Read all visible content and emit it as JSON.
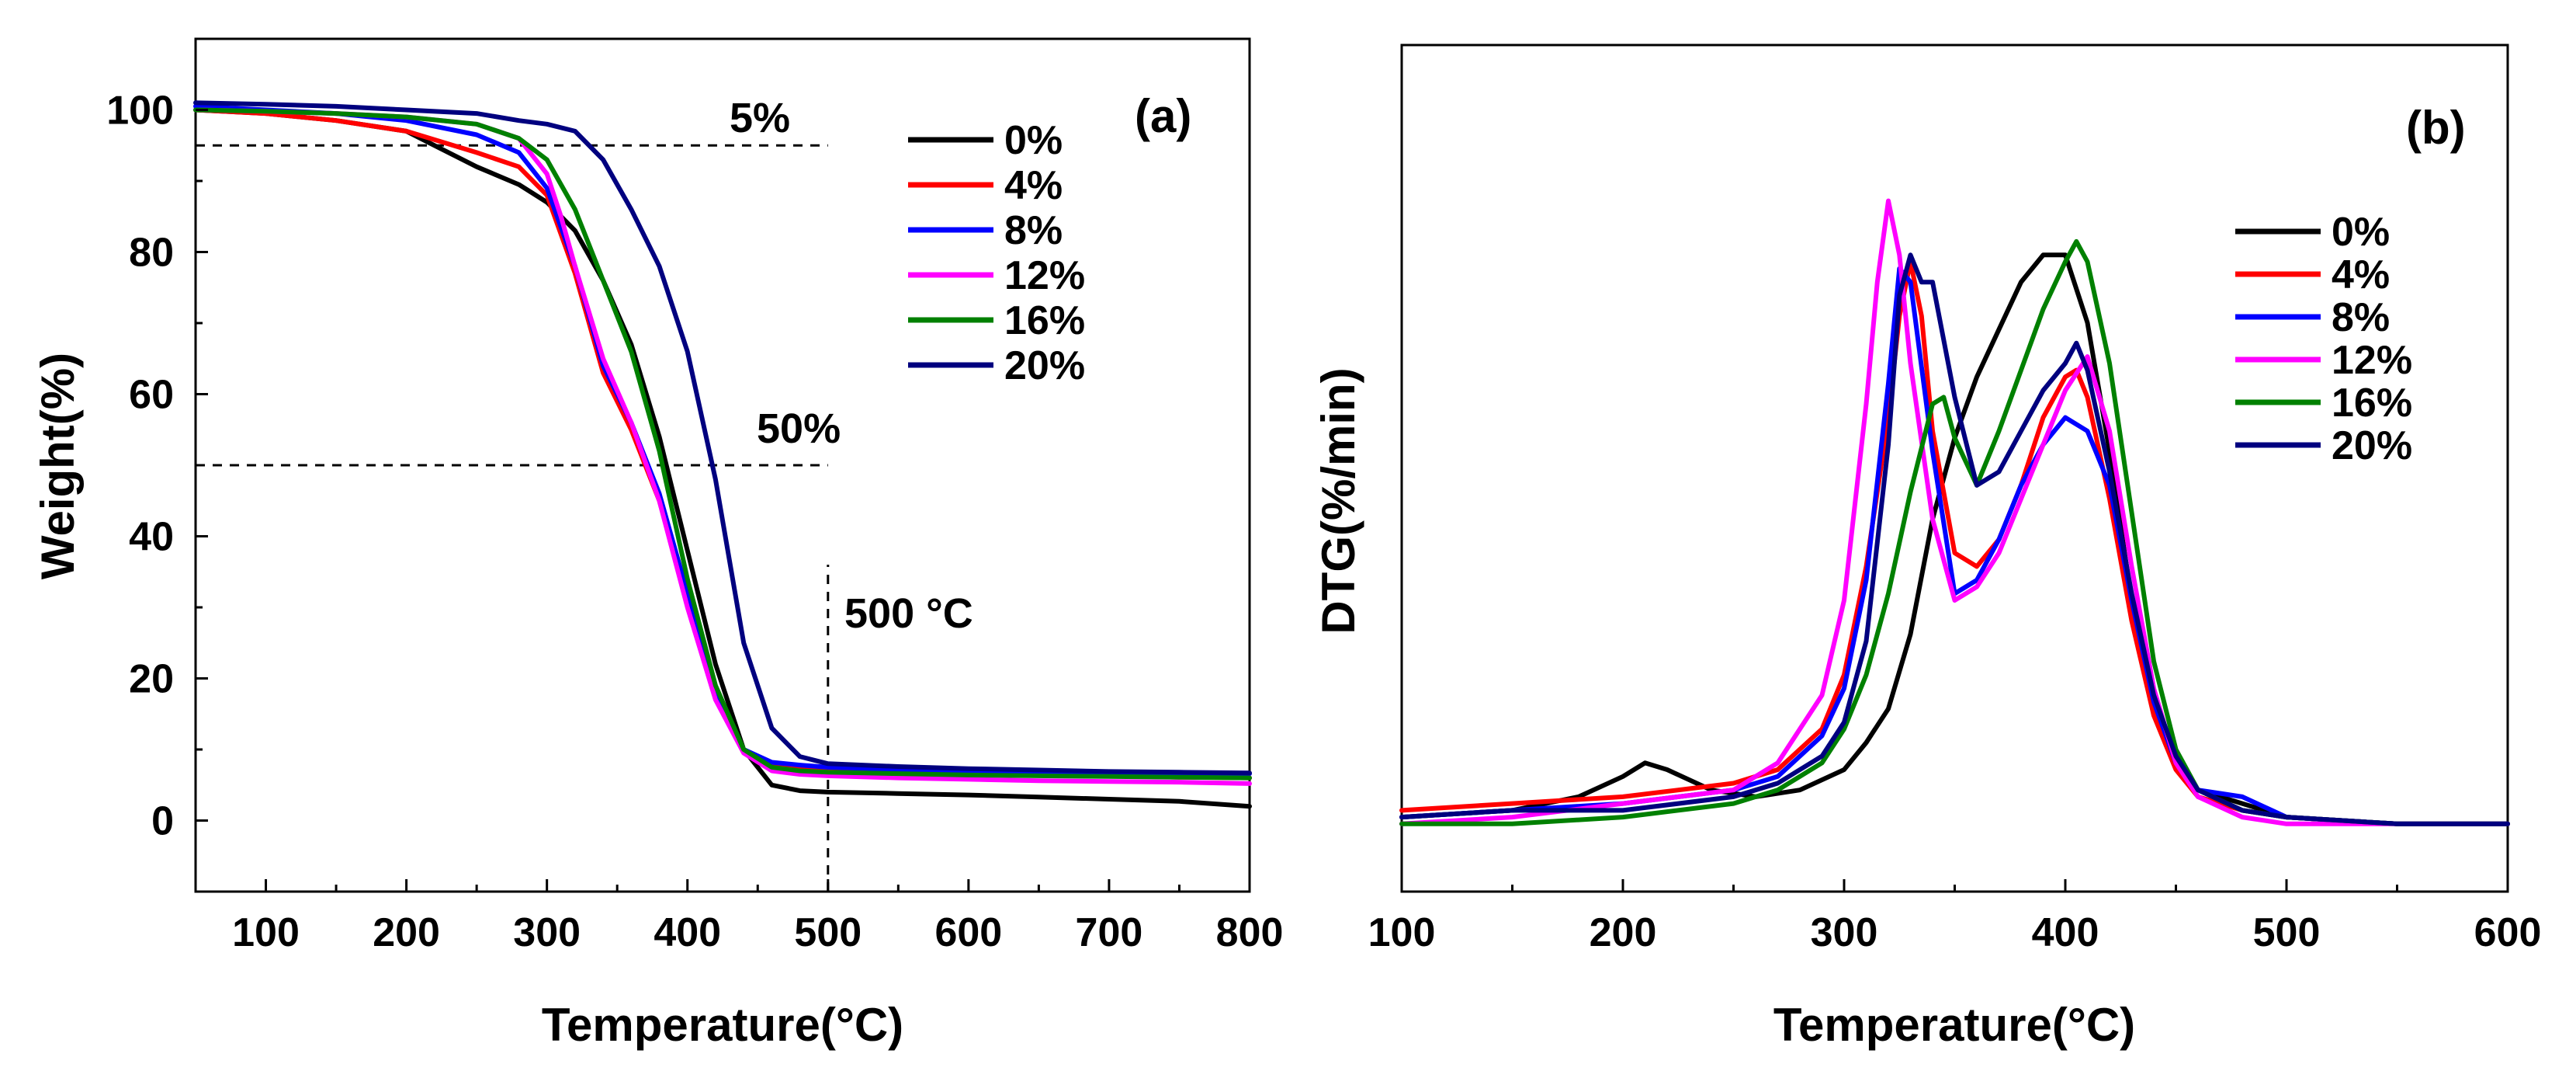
{
  "colors": {
    "0%": "#000000",
    "4%": "#ff0000",
    "8%": "#0000ff",
    "12%": "#ff00ff",
    "16%": "#008000",
    "20%": "#00007f"
  },
  "chart_data": [
    {
      "id": "a",
      "type": "line",
      "panel_label": "(a)",
      "title": "",
      "xlabel": "Temperature(°C)",
      "ylabel": "Weight(%)",
      "xlim": [
        50,
        800
      ],
      "ylim": [
        -10,
        110
      ],
      "xticks": [
        100,
        200,
        300,
        400,
        500,
        600,
        700,
        800
      ],
      "yticks": [
        0,
        20,
        40,
        60,
        80,
        100
      ],
      "legend_position": "top-right",
      "reference_lines": [
        {
          "orientation": "horizontal",
          "y": 95,
          "x_range": [
            50,
            500
          ],
          "label": "5%"
        },
        {
          "orientation": "horizontal",
          "y": 50,
          "x_range": [
            50,
            500
          ],
          "label": "50%"
        },
        {
          "orientation": "vertical",
          "x": 500,
          "y_range": [
            -10,
            36
          ],
          "label": "500 °C"
        }
      ],
      "series": [
        {
          "name": "0%",
          "x": [
            50,
            100,
            150,
            200,
            220,
            250,
            280,
            300,
            320,
            340,
            360,
            380,
            400,
            420,
            440,
            460,
            480,
            500,
            550,
            600,
            650,
            700,
            750,
            800
          ],
          "values": [
            100,
            99.5,
            98.5,
            97,
            95,
            92,
            89.5,
            87,
            83,
            76,
            67,
            54,
            38,
            22,
            10,
            5,
            4.2,
            4,
            3.8,
            3.6,
            3.3,
            3,
            2.7,
            2
          ]
        },
        {
          "name": "4%",
          "x": [
            50,
            100,
            150,
            200,
            250,
            280,
            300,
            320,
            340,
            360,
            380,
            400,
            420,
            440,
            460,
            480,
            500,
            550,
            600,
            650,
            700,
            750,
            800
          ],
          "values": [
            100,
            99.5,
            98.5,
            97,
            94,
            92,
            88,
            77,
            63,
            55,
            45,
            31,
            18,
            10,
            8,
            7.5,
            7.2,
            6.9,
            6.7,
            6.5,
            6.3,
            6.1,
            6
          ]
        },
        {
          "name": "8%",
          "x": [
            50,
            100,
            150,
            200,
            250,
            280,
            300,
            320,
            340,
            360,
            380,
            400,
            420,
            440,
            460,
            480,
            500,
            550,
            600,
            650,
            700,
            750,
            800
          ],
          "values": [
            100.5,
            100,
            99.5,
            98.5,
            96.5,
            94,
            89,
            78,
            64,
            56,
            46,
            32,
            18,
            10,
            8.2,
            7.8,
            7.5,
            7.2,
            7,
            6.9,
            6.8,
            6.7,
            6.6
          ]
        },
        {
          "name": "12%",
          "x": [
            50,
            100,
            150,
            200,
            250,
            280,
            300,
            310,
            320,
            340,
            360,
            380,
            400,
            420,
            440,
            460,
            480,
            500,
            550,
            600,
            650,
            700,
            750,
            800
          ],
          "values": [
            100,
            99.8,
            99.5,
            99,
            98,
            96,
            91,
            85,
            78,
            65,
            56,
            45,
            30,
            17,
            9.5,
            7,
            6.5,
            6.3,
            6,
            5.8,
            5.6,
            5.5,
            5.4,
            5.2
          ]
        },
        {
          "name": "16%",
          "x": [
            50,
            100,
            150,
            200,
            250,
            280,
            300,
            320,
            340,
            360,
            380,
            400,
            420,
            440,
            460,
            480,
            500,
            550,
            600,
            650,
            700,
            750,
            800
          ],
          "values": [
            100,
            99.8,
            99.5,
            99,
            98,
            96,
            93,
            86,
            76,
            66,
            52,
            34,
            19,
            10,
            7.5,
            7,
            6.8,
            6.6,
            6.4,
            6.3,
            6.2,
            6.1,
            6
          ]
        },
        {
          "name": "20%",
          "x": [
            50,
            100,
            150,
            200,
            250,
            280,
            300,
            320,
            340,
            360,
            380,
            400,
            420,
            440,
            460,
            480,
            500,
            550,
            600,
            650,
            700,
            750,
            800
          ],
          "values": [
            101,
            100.8,
            100.5,
            100,
            99.5,
            98.5,
            98,
            97,
            93,
            86,
            78,
            66,
            48,
            25,
            13,
            9,
            8,
            7.6,
            7.3,
            7.1,
            6.9,
            6.8,
            6.7
          ]
        }
      ]
    },
    {
      "id": "b",
      "type": "line",
      "panel_label": "(b)",
      "title": "",
      "xlabel": "Temperature(°C)",
      "ylabel": "DTG(%/min)",
      "xlim": [
        100,
        600
      ],
      "ylim": [
        -0.1,
        1.15
      ],
      "xticks": [
        100,
        200,
        300,
        400,
        500,
        600
      ],
      "yticks": [],
      "legend_position": "right",
      "series": [
        {
          "name": "0%",
          "x": [
            100,
            150,
            180,
            200,
            210,
            220,
            240,
            260,
            280,
            300,
            310,
            320,
            330,
            340,
            350,
            360,
            370,
            380,
            390,
            400,
            410,
            420,
            430,
            440,
            450,
            460,
            480,
            500,
            550,
            600
          ],
          "values": [
            0.01,
            0.02,
            0.04,
            0.07,
            0.09,
            0.08,
            0.05,
            0.04,
            0.05,
            0.08,
            0.12,
            0.17,
            0.28,
            0.45,
            0.57,
            0.66,
            0.73,
            0.8,
            0.84,
            0.84,
            0.74,
            0.55,
            0.33,
            0.18,
            0.09,
            0.05,
            0.03,
            0.01,
            0,
            0
          ]
        },
        {
          "name": "4%",
          "x": [
            100,
            150,
            200,
            250,
            270,
            290,
            300,
            310,
            320,
            325,
            330,
            335,
            340,
            350,
            360,
            370,
            380,
            390,
            400,
            405,
            410,
            420,
            430,
            440,
            450,
            460,
            480,
            500,
            550,
            600
          ],
          "values": [
            0.02,
            0.03,
            0.04,
            0.06,
            0.08,
            0.14,
            0.22,
            0.38,
            0.6,
            0.75,
            0.83,
            0.75,
            0.58,
            0.4,
            0.38,
            0.42,
            0.5,
            0.6,
            0.66,
            0.67,
            0.63,
            0.48,
            0.3,
            0.16,
            0.08,
            0.04,
            0.02,
            0.01,
            0,
            0
          ]
        },
        {
          "name": "8%",
          "x": [
            100,
            150,
            200,
            250,
            270,
            290,
            300,
            310,
            320,
            325,
            330,
            340,
            350,
            360,
            370,
            380,
            390,
            400,
            410,
            420,
            430,
            440,
            450,
            460,
            480,
            500,
            550,
            600
          ],
          "values": [
            0.01,
            0.02,
            0.03,
            0.05,
            0.07,
            0.13,
            0.2,
            0.36,
            0.65,
            0.82,
            0.8,
            0.55,
            0.34,
            0.36,
            0.42,
            0.5,
            0.56,
            0.6,
            0.58,
            0.5,
            0.33,
            0.18,
            0.09,
            0.05,
            0.04,
            0.01,
            0,
            0
          ]
        },
        {
          "name": "12%",
          "x": [
            100,
            150,
            200,
            250,
            270,
            290,
            300,
            310,
            315,
            320,
            325,
            330,
            340,
            350,
            360,
            370,
            380,
            390,
            400,
            410,
            420,
            430,
            440,
            450,
            460,
            480,
            500,
            550,
            600
          ],
          "values": [
            0,
            0.01,
            0.03,
            0.05,
            0.09,
            0.19,
            0.33,
            0.62,
            0.8,
            0.92,
            0.84,
            0.68,
            0.45,
            0.33,
            0.35,
            0.4,
            0.48,
            0.56,
            0.64,
            0.69,
            0.58,
            0.38,
            0.2,
            0.09,
            0.04,
            0.01,
            0,
            0,
            0
          ]
        },
        {
          "name": "16%",
          "x": [
            100,
            150,
            200,
            250,
            270,
            290,
            300,
            310,
            320,
            330,
            340,
            345,
            350,
            360,
            370,
            380,
            390,
            400,
            405,
            410,
            420,
            430,
            440,
            450,
            460,
            480,
            500,
            550,
            600
          ],
          "values": [
            0,
            0,
            0.01,
            0.03,
            0.05,
            0.09,
            0.14,
            0.22,
            0.34,
            0.49,
            0.62,
            0.63,
            0.57,
            0.5,
            0.58,
            0.67,
            0.76,
            0.83,
            0.86,
            0.83,
            0.68,
            0.46,
            0.24,
            0.11,
            0.05,
            0.02,
            0.01,
            0,
            0
          ]
        },
        {
          "name": "20%",
          "x": [
            100,
            150,
            200,
            250,
            270,
            290,
            300,
            310,
            320,
            325,
            330,
            335,
            340,
            350,
            360,
            370,
            380,
            390,
            400,
            405,
            410,
            420,
            430,
            440,
            450,
            460,
            480,
            500,
            550,
            600
          ],
          "values": [
            0.01,
            0.02,
            0.02,
            0.04,
            0.06,
            0.1,
            0.15,
            0.27,
            0.56,
            0.78,
            0.84,
            0.8,
            0.8,
            0.63,
            0.5,
            0.52,
            0.58,
            0.64,
            0.68,
            0.71,
            0.67,
            0.52,
            0.34,
            0.19,
            0.1,
            0.05,
            0.02,
            0.01,
            0,
            0
          ]
        }
      ]
    }
  ]
}
